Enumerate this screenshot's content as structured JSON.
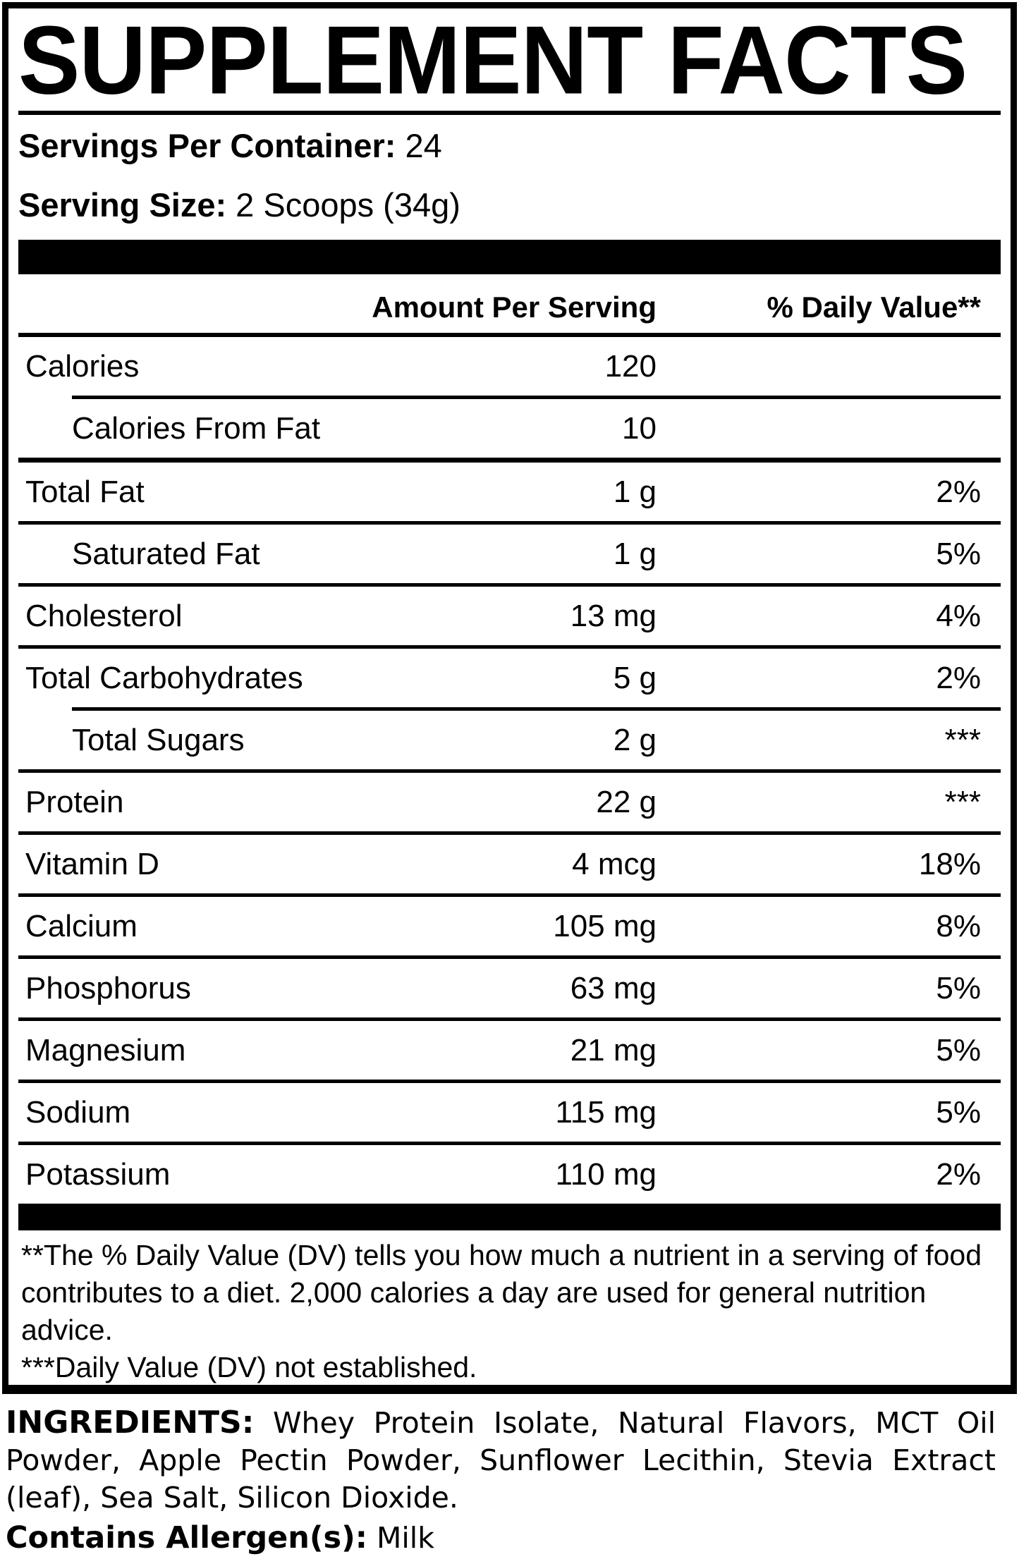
{
  "colors": {
    "background": "#ffffff",
    "ink": "#000000"
  },
  "title": "SUPPLEMENT FACTS",
  "serving_info": {
    "servings_per_container_label": "Servings Per Container:",
    "servings_per_container_value": "24",
    "serving_size_label": "Serving Size:",
    "serving_size_value": "2 Scoops (34g)"
  },
  "table": {
    "header": {
      "amount": "Amount Per Serving",
      "daily_value": "% Daily Value**"
    },
    "rows": [
      {
        "name": "Calories",
        "amount": "120",
        "dv": "",
        "indent": false,
        "separator": "indented"
      },
      {
        "name": "Calories From Fat",
        "amount": "10",
        "dv": "",
        "indent": true,
        "separator": "thick"
      },
      {
        "name": "Total Fat",
        "amount": "1 g",
        "dv": "2%",
        "indent": false,
        "separator": "full"
      },
      {
        "name": "Saturated Fat",
        "amount": "1 g",
        "dv": "5%",
        "indent": true,
        "separator": "full"
      },
      {
        "name": "Cholesterol",
        "amount": "13 mg",
        "dv": "4%",
        "indent": false,
        "separator": "full"
      },
      {
        "name": "Total Carbohydrates",
        "amount": "5 g",
        "dv": "2%",
        "indent": false,
        "separator": "indented"
      },
      {
        "name": "Total Sugars",
        "amount": "2 g",
        "dv": "***",
        "indent": true,
        "separator": "full"
      },
      {
        "name": "Protein",
        "amount": "22 g",
        "dv": "***",
        "indent": false,
        "separator": "full"
      },
      {
        "name": "Vitamin D",
        "amount": "4 mcg",
        "dv": "18%",
        "indent": false,
        "separator": "full"
      },
      {
        "name": "Calcium",
        "amount": "105 mg",
        "dv": "8%",
        "indent": false,
        "separator": "full"
      },
      {
        "name": "Phosphorus",
        "amount": "63 mg",
        "dv": "5%",
        "indent": false,
        "separator": "full"
      },
      {
        "name": "Magnesium",
        "amount": "21 mg",
        "dv": "5%",
        "indent": false,
        "separator": "full"
      },
      {
        "name": "Sodium",
        "amount": "115 mg",
        "dv": "5%",
        "indent": false,
        "separator": "full"
      },
      {
        "name": "Potassium",
        "amount": "110 mg",
        "dv": "2%",
        "indent": false,
        "separator": "none"
      }
    ]
  },
  "footnotes": {
    "daily_value": "**The % Daily Value (DV) tells you how much a nutrient in a serving of food contributes to a diet. 2,000 calories a day are used for general nutrition advice.",
    "not_established": "***Daily Value (DV) not established."
  },
  "ingredients": {
    "label": "INGREDIENTS:",
    "text": "Whey Protein Isolate, Natural Flavors, MCT Oil Powder, Apple Pectin Powder, Sunflower Lecithin, Stevia Extract (leaf), Sea Salt, Silicon Dioxide."
  },
  "allergen": {
    "label": "Contains Allergen(s):",
    "value": "Milk"
  }
}
